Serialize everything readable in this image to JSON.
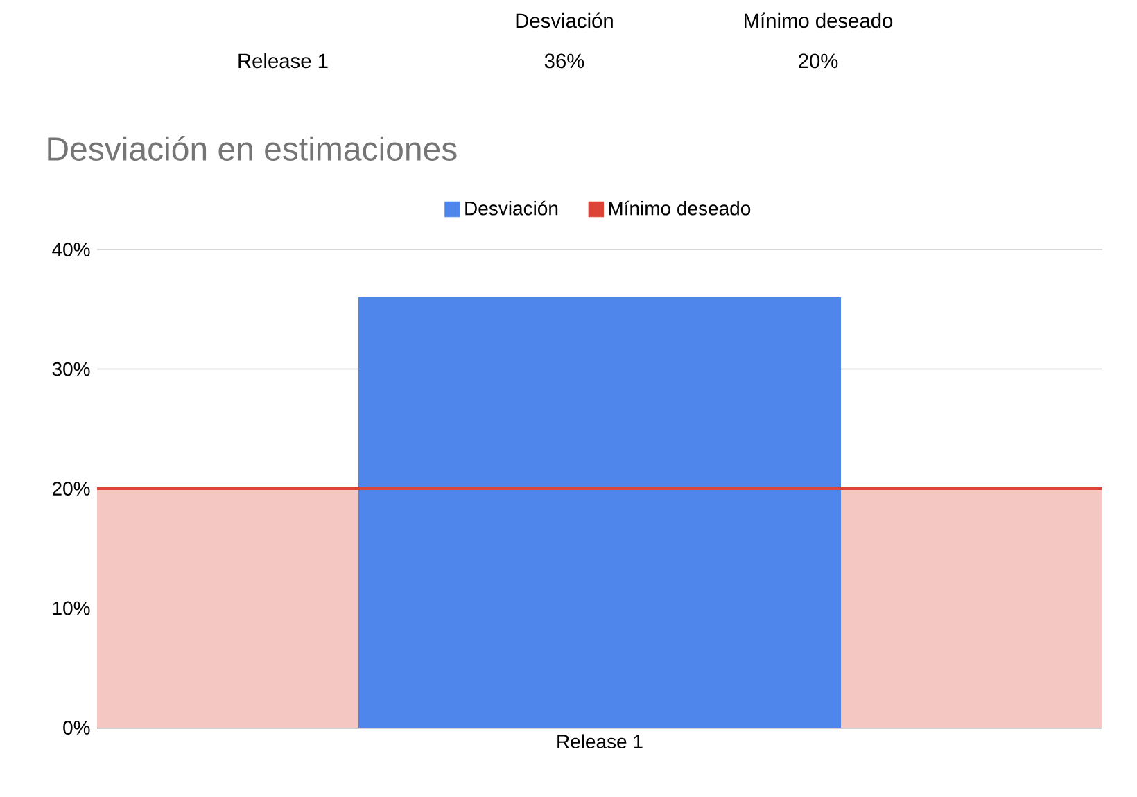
{
  "chart_data": {
    "type": "bar",
    "title": "Desviación en estimaciones",
    "categories": [
      "Release 1"
    ],
    "series": [
      {
        "name": "Desviación",
        "color": "#4f86ec",
        "values": [
          36
        ]
      }
    ],
    "ref_lines": [
      {
        "axis": "y",
        "value": 20,
        "label": "Mínimo deseado",
        "color": "#db4437"
      }
    ],
    "bands": [
      {
        "axis": "y",
        "from": 0,
        "to": 20,
        "color": "#f4c7c3"
      }
    ],
    "annotations": [
      "36%",
      "20%"
    ],
    "ylim": [
      0,
      40
    ],
    "yticks": [
      {
        "value": 0,
        "label": "0%"
      },
      {
        "value": 10,
        "label": "10%"
      },
      {
        "value": 20,
        "label": "20%"
      },
      {
        "value": 30,
        "label": "30%"
      },
      {
        "value": 40,
        "label": "40%"
      }
    ],
    "grid": "y",
    "legend": "top"
  }
}
